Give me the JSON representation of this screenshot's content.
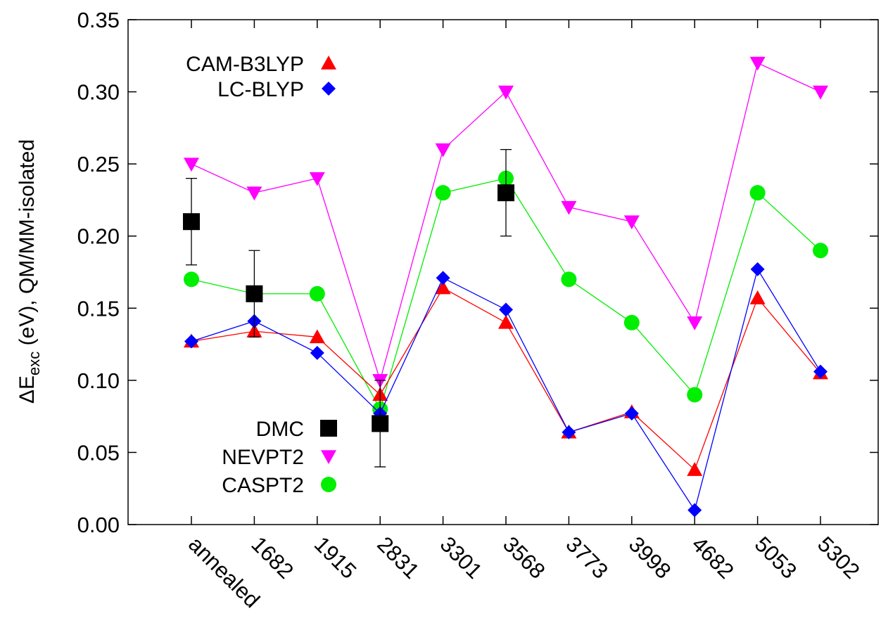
{
  "chart_data": {
    "type": "line",
    "ylabel": "ΔE",
    "ylabel_sub": "exc",
    "ylabel_rest": " (eV), QM/MM-isolated",
    "xlabel": "",
    "categories": [
      "annealed",
      "1682",
      "1915",
      "2831",
      "3301",
      "3568",
      "3773",
      "3998",
      "4682",
      "5053",
      "5302"
    ],
    "ylim": [
      0.0,
      0.35
    ],
    "yticks": [
      0.0,
      0.05,
      0.1,
      0.15,
      0.2,
      0.25,
      0.3,
      0.35
    ],
    "ytick_labels": [
      "0.00",
      "0.05",
      "0.10",
      "0.15",
      "0.20",
      "0.25",
      "0.30",
      "0.35"
    ],
    "grid": false,
    "series": [
      {
        "name": "CAM-B3LYP",
        "color": "#ff0000",
        "marker": "triangle-up",
        "lines": true,
        "values": [
          0.127,
          0.134,
          0.13,
          0.09,
          0.164,
          0.14,
          0.064,
          0.078,
          0.038,
          0.157,
          0.105
        ]
      },
      {
        "name": "LC-BLYP",
        "color": "#0000ff",
        "marker": "diamond",
        "lines": true,
        "values": [
          0.127,
          0.141,
          0.119,
          0.077,
          0.171,
          0.149,
          0.064,
          0.077,
          0.01,
          0.177,
          0.106
        ]
      },
      {
        "name": "NEVPT2",
        "color": "#ff00ff",
        "marker": "triangle-down",
        "lines": true,
        "values": [
          0.25,
          0.23,
          0.24,
          0.1,
          0.26,
          0.3,
          0.22,
          0.21,
          0.14,
          0.32,
          0.3
        ]
      },
      {
        "name": "CASPT2",
        "color": "#00ee00",
        "marker": "circle",
        "lines": true,
        "values": [
          0.17,
          0.16,
          0.16,
          0.08,
          0.23,
          0.24,
          0.17,
          0.14,
          0.09,
          0.23,
          0.19
        ]
      },
      {
        "name": "DMC",
        "color": "#000000",
        "marker": "square",
        "lines": false,
        "points": [
          {
            "category": "annealed",
            "value": 0.21,
            "error": 0.03
          },
          {
            "category": "1682",
            "value": 0.16,
            "error": 0.03
          },
          {
            "category": "2831",
            "value": 0.07,
            "error": 0.03
          },
          {
            "category": "3568",
            "value": 0.23,
            "error": 0.03
          }
        ]
      }
    ],
    "legend": [
      {
        "group": "top-left",
        "items": [
          "CAM-B3LYP",
          "LC-BLYP"
        ]
      },
      {
        "group": "bottom-left",
        "items": [
          "DMC",
          "NEVPT2",
          "CASPT2"
        ]
      }
    ]
  }
}
